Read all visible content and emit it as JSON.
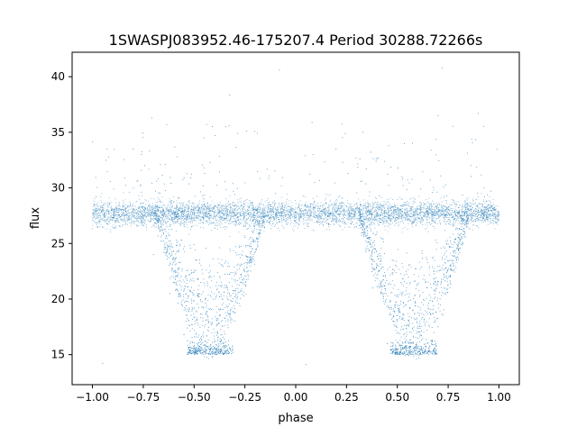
{
  "chart_data": {
    "type": "scatter",
    "title": "1SWASPJ083952.46-175207.4 Period 30288.72266s",
    "xlabel": "phase",
    "ylabel": "flux",
    "xlim": [
      -1.1,
      1.1
    ],
    "ylim": [
      12.3,
      42.2
    ],
    "xticks": [
      -1.0,
      -0.75,
      -0.5,
      -0.25,
      0.0,
      0.25,
      0.5,
      0.75,
      1.0
    ],
    "xtick_labels": [
      "−1.00",
      "−0.75",
      "−0.50",
      "−0.25",
      "0.00",
      "0.25",
      "0.50",
      "0.75",
      "1.00"
    ],
    "yticks": [
      15,
      20,
      25,
      30,
      35,
      40
    ],
    "ytick_labels": [
      "15",
      "20",
      "25",
      "30",
      "35",
      "40"
    ],
    "grid": false,
    "legend": "none",
    "point_color": "#1f77b4",
    "series": [
      {
        "baseline_flux": 27.7,
        "baseline_scatter": 0.55,
        "phase_range": [
          -1.0,
          1.0
        ],
        "eclipse_centers": [
          -0.42,
          0.58
        ],
        "eclipse_half_width": 0.27,
        "eclipse_floor_flux": 15.0,
        "flux_range": [
          13.5,
          40.8
        ],
        "sample_points": [
          [
            -0.98,
            27.9
          ],
          [
            -0.9,
            27.3
          ],
          [
            -0.8,
            28.1
          ],
          [
            -0.7,
            24.0
          ],
          [
            -0.62,
            20.5
          ],
          [
            -0.55,
            16.8
          ],
          [
            -0.5,
            15.2
          ],
          [
            -0.42,
            15.4
          ],
          [
            -0.35,
            15.1
          ],
          [
            -0.3,
            18.0
          ],
          [
            -0.25,
            22.5
          ],
          [
            -0.18,
            27.0
          ],
          [
            -0.1,
            27.6
          ],
          [
            0.0,
            27.8
          ],
          [
            0.1,
            27.5
          ],
          [
            0.2,
            27.9
          ],
          [
            0.3,
            26.5
          ],
          [
            0.38,
            21.0
          ],
          [
            0.45,
            16.0
          ],
          [
            0.5,
            15.3
          ],
          [
            0.58,
            15.5
          ],
          [
            0.65,
            15.2
          ],
          [
            0.7,
            17.5
          ],
          [
            0.76,
            22.0
          ],
          [
            0.82,
            27.2
          ],
          [
            0.9,
            27.8
          ],
          [
            1.0,
            27.6
          ],
          [
            -0.8,
            33.5
          ],
          [
            0.33,
            35.0
          ],
          [
            0.72,
            40.8
          ],
          [
            -0.08,
            40.6
          ],
          [
            -0.95,
            14.2
          ],
          [
            0.05,
            14.1
          ],
          [
            -0.41,
            35.5
          ],
          [
            0.7,
            36.5
          ]
        ]
      }
    ]
  }
}
